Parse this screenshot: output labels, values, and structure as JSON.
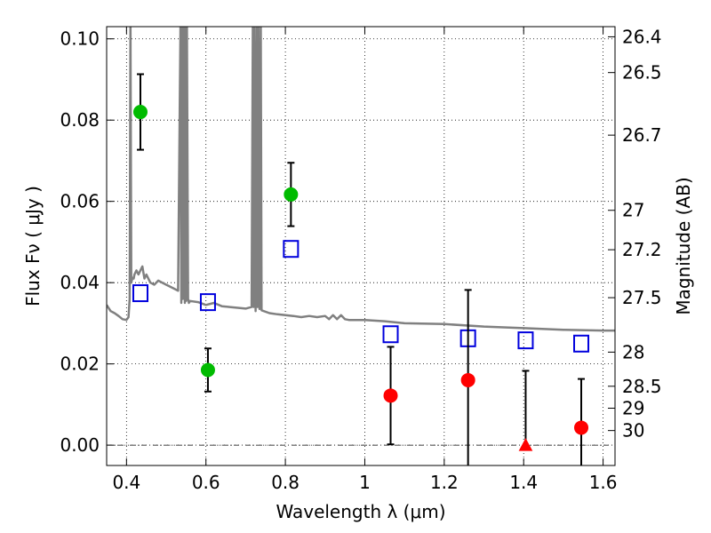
{
  "chart_data": {
    "type": "scatter",
    "xlabel": "Wavelength  λ (μm)",
    "ylabel": "Flux  Fν  ( μJy )",
    "ylabel_right": "Magnitude (AB)",
    "xlim": [
      0.35,
      1.63
    ],
    "ylim": [
      -0.005,
      0.103
    ],
    "x_ticks": [
      0.4,
      0.6,
      0.8,
      1.0,
      1.2,
      1.4,
      1.6
    ],
    "x_tick_labels": [
      "0.4",
      "0.6",
      "0.8",
      "1",
      "1.2",
      "1.4",
      "1.6"
    ],
    "y_ticks": [
      0.0,
      0.02,
      0.04,
      0.06,
      0.08,
      0.1
    ],
    "y_tick_labels": [
      "0.00",
      "0.02",
      "0.04",
      "0.06",
      "0.08",
      "0.10"
    ],
    "right_ticks": [
      {
        "label": "26.4",
        "flux": 0.1005
      },
      {
        "label": "26.5",
        "flux": 0.0917
      },
      {
        "label": "26.7",
        "flux": 0.0763
      },
      {
        "label": "27",
        "flux": 0.0578
      },
      {
        "label": "27.2",
        "flux": 0.0481
      },
      {
        "label": "27.5",
        "flux": 0.0363
      },
      {
        "label": "28",
        "flux": 0.0229
      },
      {
        "label": "28.5",
        "flux": 0.0145
      },
      {
        "label": "29",
        "flux": 0.0091
      },
      {
        "label": "30",
        "flux": 0.0036
      }
    ],
    "grid": true,
    "zero_line": true,
    "series": [
      {
        "style": "spectrum",
        "color": "#808080",
        "x": [
          0.35,
          0.36,
          0.37,
          0.38,
          0.39,
          0.4,
          0.405,
          0.408,
          0.41,
          0.412,
          0.415,
          0.418,
          0.42,
          0.425,
          0.43,
          0.435,
          0.44,
          0.445,
          0.45,
          0.455,
          0.46,
          0.47,
          0.48,
          0.49,
          0.5,
          0.51,
          0.52,
          0.53,
          0.536,
          0.538,
          0.54,
          0.542,
          0.544,
          0.547,
          0.548,
          0.55,
          0.552,
          0.555,
          0.557,
          0.56,
          0.58,
          0.6,
          0.62,
          0.64,
          0.66,
          0.68,
          0.7,
          0.715,
          0.718,
          0.72,
          0.722,
          0.725,
          0.728,
          0.73,
          0.732,
          0.735,
          0.738,
          0.74,
          0.76,
          0.78,
          0.8,
          0.82,
          0.84,
          0.86,
          0.88,
          0.9,
          0.91,
          0.92,
          0.93,
          0.94,
          0.95,
          0.96,
          1.0,
          1.05,
          1.1,
          1.2,
          1.3,
          1.4,
          1.5,
          1.6,
          1.63
        ],
        "y": [
          0.0345,
          0.033,
          0.0325,
          0.0318,
          0.031,
          0.0308,
          0.0315,
          0.036,
          0.104,
          0.04,
          0.0412,
          0.041,
          0.042,
          0.043,
          0.042,
          0.043,
          0.044,
          0.041,
          0.042,
          0.041,
          0.04,
          0.0395,
          0.0405,
          0.04,
          0.0395,
          0.039,
          0.0385,
          0.038,
          0.104,
          0.035,
          0.104,
          0.036,
          0.104,
          0.035,
          0.104,
          0.0355,
          0.104,
          0.036,
          0.035,
          0.0355,
          0.0352,
          0.0345,
          0.035,
          0.0342,
          0.034,
          0.0338,
          0.0336,
          0.034,
          0.104,
          0.034,
          0.104,
          0.033,
          0.104,
          0.034,
          0.104,
          0.0335,
          0.104,
          0.0332,
          0.0325,
          0.0322,
          0.032,
          0.0318,
          0.0315,
          0.0318,
          0.0315,
          0.0318,
          0.031,
          0.032,
          0.031,
          0.032,
          0.031,
          0.0308,
          0.0308,
          0.0305,
          0.03,
          0.0298,
          0.0292,
          0.0288,
          0.0284,
          0.0282,
          0.0282
        ]
      },
      {
        "style": "open-square",
        "color": "#0000dd",
        "x": [
          0.435,
          0.605,
          0.814,
          1.065,
          1.26,
          1.405,
          1.545
        ],
        "y": [
          0.0374,
          0.0352,
          0.0483,
          0.0273,
          0.0263,
          0.0258,
          0.025
        ]
      },
      {
        "style": "filled-circle",
        "color": "#00bb00",
        "x": [
          0.435,
          0.605,
          0.814
        ],
        "y": [
          0.082,
          0.0185,
          0.0617
        ],
        "yerr": [
          0.0093,
          0.0053,
          0.0078
        ]
      },
      {
        "style": "filled-circle",
        "color": "#ff0000",
        "x": [
          1.065,
          1.26,
          1.545
        ],
        "y": [
          0.0122,
          0.016,
          0.0043
        ],
        "yerr": [
          0.012,
          0.0222,
          0.012
        ]
      },
      {
        "style": "filled-triangle",
        "color": "#ff0000",
        "x": [
          1.405
        ],
        "y": [
          0.0
        ],
        "yerr_upper": [
          0.0183
        ]
      }
    ]
  }
}
